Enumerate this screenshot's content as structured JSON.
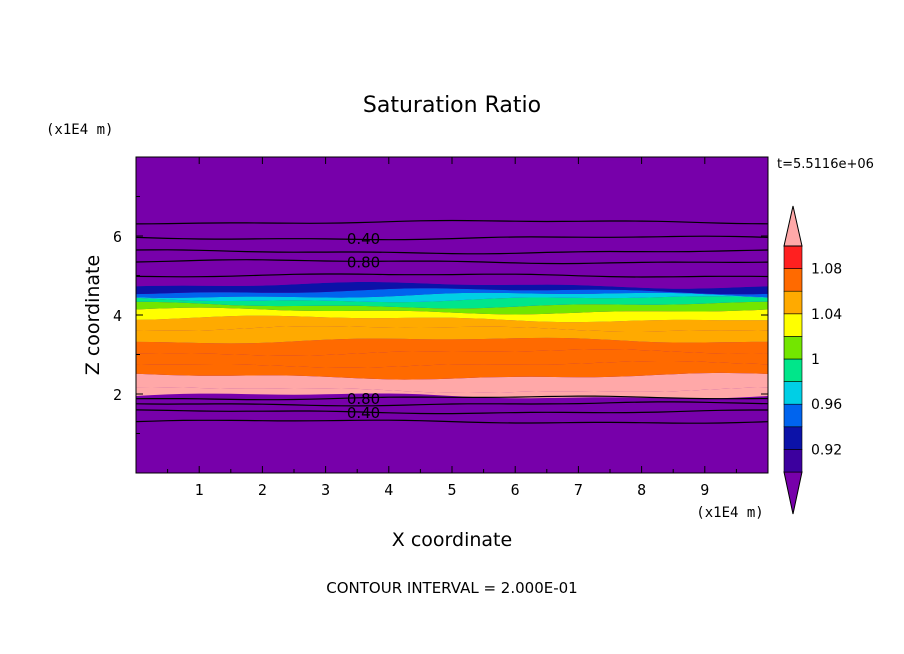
{
  "chart_data": {
    "type": "heatmap",
    "title": "Saturation Ratio",
    "xlabel": "X coordinate",
    "ylabel": "Z coordinate",
    "x_unit": "(x1E4 m)",
    "y_unit": "(x1E4 m)",
    "time_label": "t=5.5116e+06",
    "footer": "CONTOUR INTERVAL = 2.000E-01",
    "xlim": [
      0,
      10
    ],
    "ylim": [
      0,
      8
    ],
    "x_ticks": [
      1,
      2,
      3,
      4,
      5,
      6,
      7,
      8,
      9
    ],
    "x_tick_labels": [
      "1",
      "2",
      "3",
      "4",
      "5",
      "6",
      "7",
      "8",
      "9"
    ],
    "y_ticks": [
      2,
      4,
      6
    ],
    "y_tick_labels": [
      "2",
      "4",
      "6"
    ],
    "colorbar": {
      "levels": [
        0.9,
        0.92,
        0.94,
        0.96,
        0.98,
        1.0,
        1.02,
        1.04,
        1.06,
        1.08,
        1.1
      ],
      "colors": [
        "#7700aa",
        "#3c009e",
        "#0c12a8",
        "#0064ee",
        "#00cfe5",
        "#00e68a",
        "#73e600",
        "#ffff00",
        "#ffaa00",
        "#ff6a00",
        "#ff2020",
        "#ffa8a8"
      ],
      "labels": [
        "0.92",
        "0.96",
        "1",
        "1.04",
        "1.08"
      ],
      "label_values": [
        0.92,
        0.96,
        1.0,
        1.04,
        1.08
      ]
    },
    "bands": [
      {
        "z_bottom": 0.0,
        "z_top": 1.95,
        "color": "#7700aa"
      },
      {
        "z_bottom": 1.95,
        "z_top": 2.1,
        "color": "#ffa8a8"
      },
      {
        "z_bottom": 2.1,
        "z_top": 2.45,
        "color": "#ffa8a8"
      },
      {
        "z_bottom": 2.45,
        "z_top": 2.75,
        "color": "#ff6a00"
      },
      {
        "z_bottom": 2.75,
        "z_top": 3.05,
        "color": "#ff6a00"
      },
      {
        "z_bottom": 3.05,
        "z_top": 3.35,
        "color": "#ff6a00"
      },
      {
        "z_bottom": 3.35,
        "z_top": 3.65,
        "color": "#ffaa00"
      },
      {
        "z_bottom": 3.65,
        "z_top": 3.9,
        "color": "#ffaa00"
      },
      {
        "z_bottom": 3.9,
        "z_top": 4.1,
        "color": "#ffff00"
      },
      {
        "z_bottom": 4.1,
        "z_top": 4.25,
        "color": "#73e600"
      },
      {
        "z_bottom": 4.25,
        "z_top": 4.4,
        "color": "#00e68a"
      },
      {
        "z_bottom": 4.4,
        "z_top": 4.5,
        "color": "#00cfe5"
      },
      {
        "z_bottom": 4.5,
        "z_top": 4.6,
        "color": "#0064ee"
      },
      {
        "z_bottom": 4.6,
        "z_top": 4.75,
        "color": "#0c12a8"
      },
      {
        "z_bottom": 4.75,
        "z_top": 8.0,
        "color": "#7700aa"
      }
    ],
    "contours": [
      {
        "z": 1.3,
        "label": ""
      },
      {
        "z": 1.55,
        "label": "0.40"
      },
      {
        "z": 1.75,
        "label": ""
      },
      {
        "z": 1.9,
        "label": "0.80"
      },
      {
        "z": 5.0,
        "label": ""
      },
      {
        "z": 5.35,
        "label": "0.80"
      },
      {
        "z": 5.6,
        "label": ""
      },
      {
        "z": 5.95,
        "label": "0.40"
      },
      {
        "z": 6.35,
        "label": ""
      }
    ]
  }
}
